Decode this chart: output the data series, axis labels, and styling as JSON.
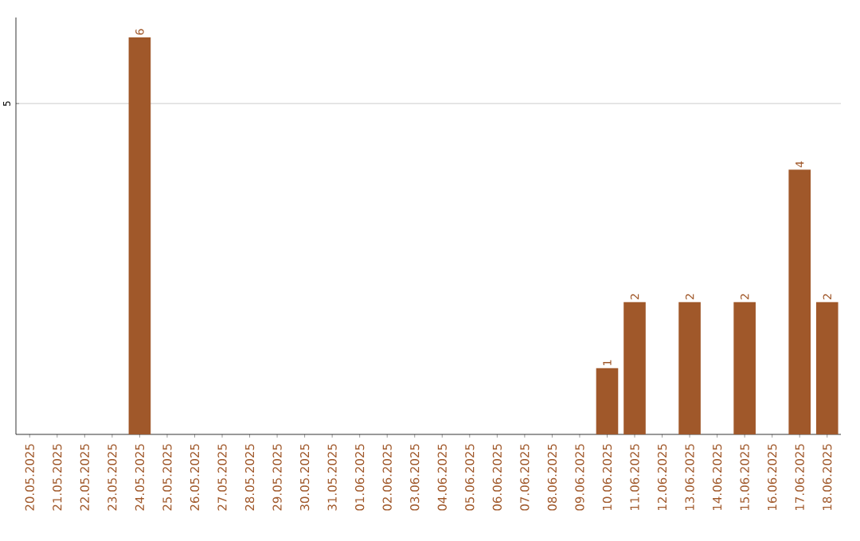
{
  "chart_data": {
    "type": "bar",
    "categories": [
      "20.05.2025",
      "21.05.2025",
      "22.05.2025",
      "23.05.2025",
      "24.05.2025",
      "25.05.2025",
      "26.05.2025",
      "27.05.2025",
      "28.05.2025",
      "29.05.2025",
      "30.05.2025",
      "31.05.2025",
      "01.06.2025",
      "02.06.2025",
      "03.06.2025",
      "04.06.2025",
      "05.06.2025",
      "06.06.2025",
      "07.06.2025",
      "08.06.2025",
      "09.06.2025",
      "10.06.2025",
      "11.06.2025",
      "12.06.2025",
      "13.06.2025",
      "14.06.2025",
      "15.06.2025",
      "16.06.2025",
      "17.06.2025",
      "18.06.2025"
    ],
    "values": [
      0,
      0,
      0,
      0,
      6,
      0,
      0,
      0,
      0,
      0,
      0,
      0,
      0,
      0,
      0,
      0,
      0,
      0,
      0,
      0,
      0,
      1,
      2,
      0,
      2,
      0,
      2,
      0,
      4,
      2
    ],
    "value_labels": [
      null,
      null,
      null,
      null,
      "6",
      null,
      null,
      null,
      null,
      null,
      null,
      null,
      null,
      null,
      null,
      null,
      null,
      null,
      null,
      null,
      null,
      "1",
      "2",
      null,
      "2",
      null,
      "2",
      null,
      "4",
      "2"
    ],
    "color": "#a0582a",
    "ylim": [
      0,
      6.3
    ],
    "yticks": [
      5
    ],
    "grid": "y"
  }
}
